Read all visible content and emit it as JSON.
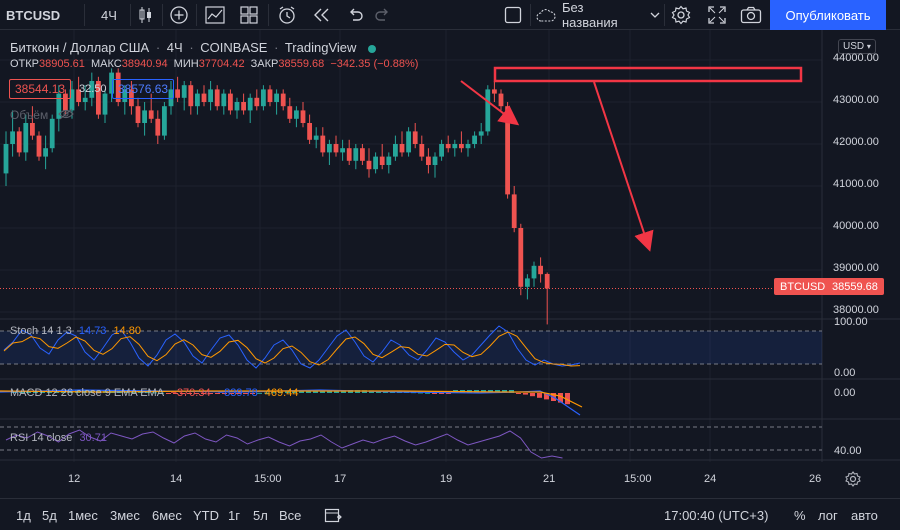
{
  "toolbar": {
    "symbol": "BTCUSD",
    "interval": "4Ч",
    "layout_name": "Без названия",
    "publish_label": "Опубликовать"
  },
  "legend": {
    "title_symbol": "Биткоин / Доллар США",
    "title_interval": "4Ч",
    "title_exchange": "COINBASE",
    "title_source": "TradingView",
    "open_label": "ОТКР",
    "open_value": "38905.61",
    "high_label": "МАКС",
    "high_value": "38940.94",
    "low_label": "МИН",
    "low_value": "37704.42",
    "close_label": "ЗАКР",
    "close_value": "38559.68",
    "change": "−342.35 (−0.88%)",
    "bid": "38544.13",
    "spread": "32.50",
    "ask": "38576.63",
    "volume_label": "Объём"
  },
  "price_axis": {
    "currency": "USD",
    "ticks": [
      "44000.00",
      "43000.00",
      "42000.00",
      "41000.00",
      "40000.00",
      "39000.00",
      "38000.00"
    ],
    "current_symbol": "BTCUSD",
    "current_price": "38559.68"
  },
  "indicators": {
    "stoch": {
      "label": "Stoch 14 1 3",
      "v1": "14.73",
      "v2": "14.80",
      "axis_top": "100.00",
      "axis_bottom": "0.00"
    },
    "macd": {
      "label": "MACD 12 26 close 9 EMA EMA",
      "v1": "−370.34",
      "v2": "−839.78",
      "v3": "469.44",
      "axis": "0.00"
    },
    "rsi": {
      "label": "RSI 14 close",
      "v1": "30.71",
      "axis": "40.00"
    }
  },
  "time_axis": {
    "ticks": [
      "12",
      "14",
      "15:00",
      "17",
      "19",
      "21",
      "15:00",
      "24",
      "26"
    ]
  },
  "bottombar": {
    "ranges": [
      "1д",
      "5д",
      "1мес",
      "3мес",
      "6мес",
      "YTD",
      "1г",
      "5л",
      "Все"
    ],
    "clock": "17:00:40 (UTC+3)",
    "percent": "%",
    "log": "лог",
    "auto": "авто"
  },
  "colors": {
    "up": "#26a69a",
    "down": "#ef5350",
    "accent": "#2962ff",
    "annotation": "#f23645",
    "stoch_k": "#2962ff",
    "stoch_d": "#ff9800",
    "rsi": "#7e57c2"
  },
  "candles": [
    [
      41300,
      42300,
      41000,
      42000
    ],
    [
      42000,
      42800,
      41700,
      42300
    ],
    [
      42300,
      42400,
      41700,
      41800
    ],
    [
      41800,
      42700,
      41600,
      42500
    ],
    [
      42500,
      42900,
      42100,
      42200
    ],
    [
      42200,
      42300,
      41600,
      41700
    ],
    [
      41700,
      42200,
      41400,
      41900
    ],
    [
      41900,
      42700,
      41800,
      42600
    ],
    [
      42600,
      43400,
      42300,
      43200
    ],
    [
      43200,
      43300,
      42700,
      42800
    ],
    [
      42800,
      43500,
      42600,
      43300
    ],
    [
      43300,
      43600,
      42900,
      43000
    ],
    [
      43000,
      43400,
      42800,
      43100
    ],
    [
      43100,
      43700,
      42900,
      43500
    ],
    [
      43500,
      43600,
      42600,
      42700
    ],
    [
      42700,
      43300,
      42500,
      43200
    ],
    [
      43200,
      43800,
      43000,
      43700
    ],
    [
      43700,
      43800,
      42900,
      43000
    ],
    [
      43000,
      43400,
      42700,
      43300
    ],
    [
      43300,
      43500,
      42700,
      42900
    ],
    [
      42900,
      43100,
      42400,
      42500
    ],
    [
      42500,
      43000,
      42200,
      42800
    ],
    [
      42800,
      43200,
      42500,
      42600
    ],
    [
      42600,
      42800,
      42000,
      42200
    ],
    [
      42200,
      43000,
      42100,
      42900
    ],
    [
      42900,
      43500,
      42700,
      43300
    ],
    [
      43300,
      43600,
      43000,
      43100
    ],
    [
      43100,
      43500,
      42800,
      43400
    ],
    [
      43400,
      43500,
      42700,
      42900
    ],
    [
      42900,
      43300,
      42700,
      43200
    ],
    [
      43200,
      43400,
      42900,
      43000
    ],
    [
      43000,
      43500,
      42800,
      43300
    ],
    [
      43300,
      43400,
      42800,
      42900
    ],
    [
      42900,
      43300,
      42700,
      43200
    ],
    [
      43200,
      43300,
      42700,
      42800
    ],
    [
      42800,
      43100,
      42600,
      43000
    ],
    [
      43000,
      43200,
      42700,
      42800
    ],
    [
      42800,
      43200,
      42500,
      43100
    ],
    [
      43100,
      43300,
      42800,
      42900
    ],
    [
      42900,
      43400,
      42800,
      43300
    ],
    [
      43300,
      43400,
      42900,
      43000
    ],
    [
      43000,
      43300,
      42700,
      43200
    ],
    [
      43200,
      43300,
      42800,
      42900
    ],
    [
      42900,
      43100,
      42500,
      42600
    ],
    [
      42600,
      42900,
      42400,
      42800
    ],
    [
      42800,
      43000,
      42400,
      42500
    ],
    [
      42500,
      42700,
      42000,
      42100
    ],
    [
      42100,
      42400,
      41900,
      42200
    ],
    [
      42200,
      42400,
      41700,
      41800
    ],
    [
      41800,
      42100,
      41500,
      42000
    ],
    [
      42000,
      42200,
      41700,
      41800
    ],
    [
      41800,
      42100,
      41600,
      41900
    ],
    [
      41900,
      42100,
      41500,
      41600
    ],
    [
      41600,
      42000,
      41400,
      41900
    ],
    [
      41900,
      42000,
      41500,
      41600
    ],
    [
      41600,
      41900,
      41200,
      41400
    ],
    [
      41400,
      41800,
      41300,
      41700
    ],
    [
      41700,
      42000,
      41400,
      41500
    ],
    [
      41500,
      41800,
      41300,
      41700
    ],
    [
      41700,
      42200,
      41600,
      42000
    ],
    [
      42000,
      42300,
      41700,
      41800
    ],
    [
      41800,
      42400,
      41700,
      42300
    ],
    [
      42300,
      42500,
      41900,
      42000
    ],
    [
      42000,
      42200,
      41600,
      41700
    ],
    [
      41700,
      41900,
      41300,
      41500
    ],
    [
      41500,
      41800,
      41200,
      41700
    ],
    [
      41700,
      42100,
      41600,
      42000
    ],
    [
      42000,
      42200,
      41800,
      41900
    ],
    [
      41900,
      42100,
      41700,
      42000
    ],
    [
      42000,
      42300,
      41800,
      41900
    ],
    [
      41900,
      42100,
      41700,
      42000
    ],
    [
      42000,
      42300,
      41900,
      42200
    ],
    [
      42200,
      42500,
      42000,
      42300
    ],
    [
      42300,
      43400,
      42200,
      43300
    ],
    [
      43300,
      43500,
      43000,
      43200
    ],
    [
      43200,
      43300,
      42800,
      42900
    ],
    [
      42900,
      43000,
      40700,
      40800
    ],
    [
      40800,
      41000,
      39900,
      40000
    ],
    [
      40000,
      40100,
      38400,
      38600
    ],
    [
      38600,
      38900,
      38300,
      38800
    ],
    [
      38800,
      39200,
      38600,
      39100
    ],
    [
      39100,
      39300,
      38700,
      38900
    ],
    [
      38905.61,
      38940.94,
      37704.42,
      38559.68
    ]
  ]
}
